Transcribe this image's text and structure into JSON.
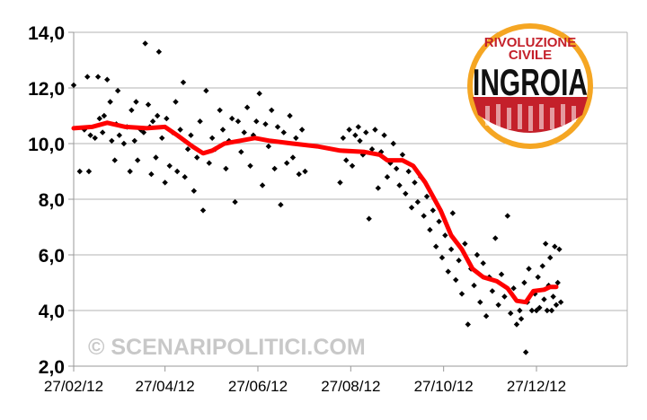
{
  "chart_data": {
    "type": "scatter",
    "title": "",
    "xlabel": "",
    "ylabel": "",
    "ylim": [
      2.0,
      14.0
    ],
    "xlim": [
      "2012-02-27",
      "2013-03-07"
    ],
    "grid": true,
    "legend": "none",
    "y_ticks": [
      "14,0",
      "12,0",
      "10,0",
      "8,0",
      "6,0",
      "4,0",
      "2,0"
    ],
    "x_ticks": [
      {
        "date": "2012-02-27",
        "label": "27/02/12"
      },
      {
        "date": "2012-04-27",
        "label": "27/04/12"
      },
      {
        "date": "2012-06-27",
        "label": "27/06/12"
      },
      {
        "date": "2012-08-27",
        "label": "27/08/12"
      },
      {
        "date": "2012-10-27",
        "label": "27/10/12"
      },
      {
        "date": "2012-12-27",
        "label": "27/12/12"
      }
    ],
    "series": [
      {
        "kind": "points",
        "color": "#000000",
        "points": [
          [
            "2012-02-27",
            12.1
          ],
          [
            "2012-03-02",
            9.0
          ],
          [
            "2012-03-05",
            10.5
          ],
          [
            "2012-03-07",
            12.4
          ],
          [
            "2012-03-08",
            9.0
          ],
          [
            "2012-03-09",
            10.3
          ],
          [
            "2012-03-12",
            10.2
          ],
          [
            "2012-03-14",
            12.4
          ],
          [
            "2012-03-15",
            10.9
          ],
          [
            "2012-03-17",
            10.4
          ],
          [
            "2012-03-18",
            11.0
          ],
          [
            "2012-03-20",
            12.3
          ],
          [
            "2012-03-22",
            11.5
          ],
          [
            "2012-03-23",
            10.1
          ],
          [
            "2012-03-25",
            9.4
          ],
          [
            "2012-03-26",
            10.7
          ],
          [
            "2012-03-27",
            11.9
          ],
          [
            "2012-03-28",
            10.3
          ],
          [
            "2012-03-31",
            10.0
          ],
          [
            "2012-04-02",
            10.6
          ],
          [
            "2012-04-04",
            9.0
          ],
          [
            "2012-04-05",
            11.2
          ],
          [
            "2012-04-07",
            10.1
          ],
          [
            "2012-04-08",
            11.5
          ],
          [
            "2012-04-09",
            9.4
          ],
          [
            "2012-04-11",
            10.5
          ],
          [
            "2012-04-13",
            10.4
          ],
          [
            "2012-04-14",
            13.6
          ],
          [
            "2012-04-16",
            11.4
          ],
          [
            "2012-04-17",
            10.6
          ],
          [
            "2012-04-18",
            8.9
          ],
          [
            "2012-04-19",
            10.8
          ],
          [
            "2012-04-21",
            9.5
          ],
          [
            "2012-04-22",
            11.0
          ],
          [
            "2012-04-23",
            13.3
          ],
          [
            "2012-04-25",
            10.2
          ],
          [
            "2012-04-27",
            8.6
          ],
          [
            "2012-04-28",
            10.9
          ],
          [
            "2012-04-30",
            9.2
          ],
          [
            "2012-05-02",
            10.4
          ],
          [
            "2012-05-04",
            11.5
          ],
          [
            "2012-05-05",
            9.0
          ],
          [
            "2012-05-07",
            10.5
          ],
          [
            "2012-05-09",
            12.2
          ],
          [
            "2012-05-10",
            8.8
          ],
          [
            "2012-05-12",
            9.8
          ],
          [
            "2012-05-14",
            10.3
          ],
          [
            "2012-05-16",
            8.3
          ],
          [
            "2012-05-18",
            9.5
          ],
          [
            "2012-05-20",
            10.8
          ],
          [
            "2012-05-22",
            7.6
          ],
          [
            "2012-05-24",
            11.9
          ],
          [
            "2012-05-26",
            9.3
          ],
          [
            "2012-05-28",
            10.2
          ],
          [
            "2012-05-30",
            9.8
          ],
          [
            "2012-06-02",
            11.2
          ],
          [
            "2012-06-04",
            10.5
          ],
          [
            "2012-06-06",
            9.1
          ],
          [
            "2012-06-08",
            10.1
          ],
          [
            "2012-06-10",
            10.9
          ],
          [
            "2012-06-12",
            7.9
          ],
          [
            "2012-06-14",
            10.8
          ],
          [
            "2012-06-16",
            9.7
          ],
          [
            "2012-06-18",
            10.4
          ],
          [
            "2012-06-20",
            11.3
          ],
          [
            "2012-06-22",
            9.2
          ],
          [
            "2012-06-24",
            10.3
          ],
          [
            "2012-06-26",
            10.8
          ],
          [
            "2012-06-28",
            11.8
          ],
          [
            "2012-06-30",
            8.5
          ],
          [
            "2012-07-02",
            10.7
          ],
          [
            "2012-07-04",
            9.9
          ],
          [
            "2012-07-06",
            11.2
          ],
          [
            "2012-07-08",
            9.1
          ],
          [
            "2012-07-10",
            10.6
          ],
          [
            "2012-07-12",
            7.8
          ],
          [
            "2012-07-14",
            10.4
          ],
          [
            "2012-07-16",
            9.3
          ],
          [
            "2012-07-18",
            11.0
          ],
          [
            "2012-07-20",
            9.5
          ],
          [
            "2012-07-22",
            10.2
          ],
          [
            "2012-07-24",
            8.9
          ],
          [
            "2012-07-26",
            10.5
          ],
          [
            "2012-07-28",
            9.0
          ],
          [
            "2012-08-20",
            8.6
          ],
          [
            "2012-08-22",
            10.2
          ],
          [
            "2012-08-24",
            9.4
          ],
          [
            "2012-08-26",
            10.5
          ],
          [
            "2012-08-28",
            9.2
          ],
          [
            "2012-08-30",
            10.3
          ],
          [
            "2012-09-01",
            10.6
          ],
          [
            "2012-09-02",
            10.1
          ],
          [
            "2012-09-04",
            9.6
          ],
          [
            "2012-09-06",
            10.4
          ],
          [
            "2012-09-08",
            7.3
          ],
          [
            "2012-09-10",
            9.8
          ],
          [
            "2012-09-12",
            10.5
          ],
          [
            "2012-09-14",
            8.4
          ],
          [
            "2012-09-16",
            9.7
          ],
          [
            "2012-09-18",
            10.3
          ],
          [
            "2012-09-20",
            8.8
          ],
          [
            "2012-09-22",
            9.3
          ],
          [
            "2012-09-24",
            10.0
          ],
          [
            "2012-09-26",
            9.1
          ],
          [
            "2012-09-28",
            8.5
          ],
          [
            "2012-09-30",
            9.6
          ],
          [
            "2012-10-02",
            8.2
          ],
          [
            "2012-10-04",
            9.0
          ],
          [
            "2012-10-06",
            7.7
          ],
          [
            "2012-10-08",
            8.6
          ],
          [
            "2012-10-10",
            7.9
          ],
          [
            "2012-10-12",
            8.8
          ],
          [
            "2012-10-14",
            7.4
          ],
          [
            "2012-10-16",
            8.1
          ],
          [
            "2012-10-18",
            6.9
          ],
          [
            "2012-10-20",
            7.6
          ],
          [
            "2012-10-22",
            6.3
          ],
          [
            "2012-10-24",
            7.2
          ],
          [
            "2012-10-26",
            5.9
          ],
          [
            "2012-10-28",
            6.7
          ],
          [
            "2012-10-30",
            5.4
          ],
          [
            "2012-11-01",
            6.2
          ],
          [
            "2012-11-02",
            7.5
          ],
          [
            "2012-11-04",
            5.1
          ],
          [
            "2012-11-06",
            5.8
          ],
          [
            "2012-11-08",
            4.6
          ],
          [
            "2012-11-10",
            6.4
          ],
          [
            "2012-11-12",
            3.5
          ],
          [
            "2012-11-14",
            5.5
          ],
          [
            "2012-11-16",
            4.9
          ],
          [
            "2012-11-18",
            6.0
          ],
          [
            "2012-11-20",
            4.3
          ],
          [
            "2012-11-22",
            5.7
          ],
          [
            "2012-11-24",
            3.8
          ],
          [
            "2012-11-26",
            5.2
          ],
          [
            "2012-11-28",
            4.7
          ],
          [
            "2012-11-30",
            6.6
          ],
          [
            "2012-12-02",
            4.2
          ],
          [
            "2012-12-04",
            5.3
          ],
          [
            "2012-12-06",
            4.5
          ],
          [
            "2012-12-08",
            7.4
          ],
          [
            "2012-12-10",
            3.9
          ],
          [
            "2012-12-12",
            4.8
          ],
          [
            "2012-12-14",
            3.5
          ],
          [
            "2012-12-16",
            4.0
          ],
          [
            "2012-12-17",
            3.7
          ],
          [
            "2012-12-19",
            5.0
          ],
          [
            "2012-12-20",
            2.5
          ],
          [
            "2012-12-21",
            4.3
          ],
          [
            "2012-12-22",
            5.5
          ],
          [
            "2012-12-24",
            4.0
          ],
          [
            "2012-12-26",
            4.6
          ],
          [
            "2012-12-27",
            4.0
          ],
          [
            "2012-12-28",
            5.2
          ],
          [
            "2012-12-29",
            4.1
          ],
          [
            "2012-12-31",
            5.6
          ],
          [
            "2013-01-01",
            4.4
          ],
          [
            "2013-01-02",
            6.4
          ],
          [
            "2013-01-03",
            4.0
          ],
          [
            "2013-01-04",
            4.9
          ],
          [
            "2013-01-05",
            5.9
          ],
          [
            "2013-01-06",
            4.0
          ],
          [
            "2013-01-07",
            4.5
          ],
          [
            "2013-01-08",
            6.3
          ],
          [
            "2013-01-09",
            4.2
          ],
          [
            "2013-01-10",
            5.0
          ],
          [
            "2013-01-11",
            6.2
          ],
          [
            "2013-01-12",
            4.3
          ]
        ]
      },
      {
        "kind": "moving-average",
        "color": "#ff0000",
        "points": [
          [
            "2012-02-27",
            10.55
          ],
          [
            "2012-03-10",
            10.6
          ],
          [
            "2012-03-20",
            10.75
          ],
          [
            "2012-04-01",
            10.6
          ],
          [
            "2012-04-15",
            10.55
          ],
          [
            "2012-04-27",
            10.6
          ],
          [
            "2012-05-05",
            10.3
          ],
          [
            "2012-05-15",
            9.9
          ],
          [
            "2012-05-22",
            9.65
          ],
          [
            "2012-05-28",
            9.75
          ],
          [
            "2012-06-05",
            10.0
          ],
          [
            "2012-06-15",
            10.1
          ],
          [
            "2012-06-25",
            10.2
          ],
          [
            "2012-07-05",
            10.1
          ],
          [
            "2012-07-20",
            10.0
          ],
          [
            "2012-08-05",
            9.9
          ],
          [
            "2012-08-20",
            9.75
          ],
          [
            "2012-09-05",
            9.7
          ],
          [
            "2012-09-15",
            9.6
          ],
          [
            "2012-09-20",
            9.4
          ],
          [
            "2012-09-30",
            9.4
          ],
          [
            "2012-10-07",
            9.2
          ],
          [
            "2012-10-15",
            8.6
          ],
          [
            "2012-10-25",
            7.6
          ],
          [
            "2012-11-01",
            6.7
          ],
          [
            "2012-11-08",
            6.2
          ],
          [
            "2012-11-15",
            5.5
          ],
          [
            "2012-11-22",
            5.2
          ],
          [
            "2012-12-01",
            5.05
          ],
          [
            "2012-12-08",
            4.8
          ],
          [
            "2012-12-14",
            4.35
          ],
          [
            "2012-12-20",
            4.3
          ],
          [
            "2012-12-25",
            4.7
          ],
          [
            "2013-01-01",
            4.75
          ],
          [
            "2013-01-05",
            4.85
          ],
          [
            "2013-01-09",
            4.85
          ]
        ]
      }
    ]
  },
  "logo": {
    "line1": "RIVOLUZIONE",
    "line2": "CIVILE",
    "line3": "INGROIA",
    "outer_color": "#f5a623",
    "inner_color": "#ffffff",
    "name_color": "#111111",
    "crowd_color": "#c4202a"
  },
  "watermark": {
    "text": "© SCENARIPOLITICI.COM",
    "color": "#c8c8c8"
  }
}
